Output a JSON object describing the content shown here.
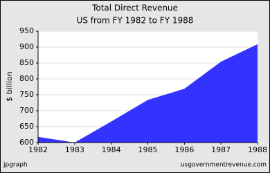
{
  "chart_data": {
    "type": "area",
    "title": "Total Direct Revenue",
    "subtitle": "US from FY 1982 to FY 1988",
    "y_label": "$ billion",
    "x": [
      1982,
      1983,
      1984,
      1985,
      1986,
      1987,
      1988
    ],
    "values": [
      618,
      600,
      666,
      734,
      769,
      854,
      909
    ],
    "color": "#3333ff",
    "xlim": [
      1982,
      1988
    ],
    "xticks": [
      1982,
      1983,
      1984,
      1985,
      1986,
      1987,
      1988
    ],
    "ylim": [
      600,
      950
    ],
    "yticks": [
      600,
      650,
      700,
      750,
      800,
      850,
      900,
      950
    ],
    "grid": true,
    "credit_left": "jpgraph",
    "credit_right": "usgovernmentrevenue.com"
  }
}
